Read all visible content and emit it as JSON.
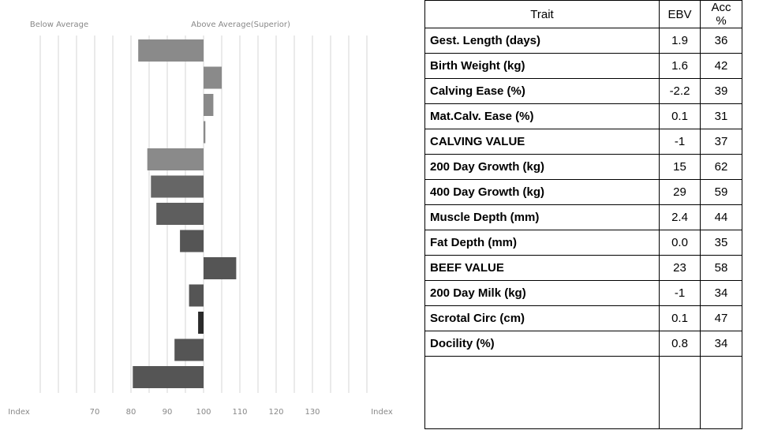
{
  "chart_data": {
    "type": "hbar",
    "left_label": "Below Average",
    "right_label": "Above Average(Superior)",
    "baseline": 100,
    "values": [
      82,
      105,
      102.7,
      100.5,
      84.5,
      85.5,
      87,
      93.5,
      109,
      96,
      98.5,
      92,
      80.5
    ],
    "colors": [
      "#8a8a8a",
      "#8a8a8a",
      "#8a8a8a",
      "#8a8a8a",
      "#8a8a8a",
      "#666666",
      "#5e5e5e",
      "#555555",
      "#555555",
      "#555555",
      "#2a2a2a",
      "#555555",
      "#555555"
    ],
    "xlim": [
      50,
      150
    ],
    "xticks": [
      70,
      80,
      90,
      100,
      110,
      120,
      130
    ],
    "xlabel_left": "Index",
    "xlabel_right": "Index",
    "xgrid": [
      55,
      60,
      65,
      70,
      75,
      80,
      85,
      90,
      95,
      100,
      105,
      110,
      115,
      120,
      125,
      130,
      135,
      140,
      145
    ]
  },
  "table": {
    "header": [
      "Trait",
      "EBV",
      "Acc %"
    ],
    "rows": [
      [
        "Gest. Length (days)",
        "1.9",
        "36"
      ],
      [
        "Birth Weight (kg)",
        "1.6",
        "42"
      ],
      [
        "Calving Ease (%)",
        "-2.2",
        "39"
      ],
      [
        "Mat.Calv. Ease (%)",
        "0.1",
        "31"
      ],
      [
        "CALVING VALUE",
        "-1",
        "37"
      ],
      [
        "200 Day Growth (kg)",
        "15",
        "62"
      ],
      [
        "400 Day Growth (kg)",
        "29",
        "59"
      ],
      [
        "Muscle Depth (mm)",
        "2.4",
        "44"
      ],
      [
        "Fat Depth (mm)",
        "0.0",
        "35"
      ],
      [
        "BEEF VALUE",
        "23",
        "58"
      ],
      [
        "200 Day Milk (kg)",
        "-1",
        "34"
      ],
      [
        "Scrotal Circ (cm)",
        "0.1",
        "47"
      ],
      [
        "Docility (%)",
        "0.8",
        "34"
      ]
    ]
  }
}
